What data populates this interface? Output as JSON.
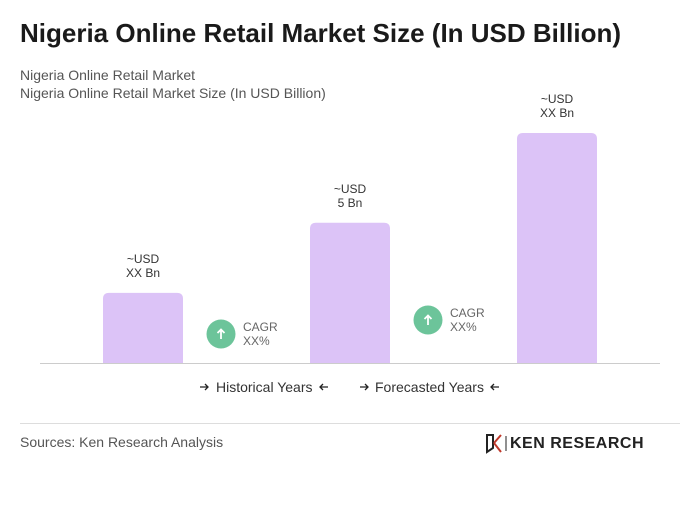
{
  "title": "Nigeria Online Retail Market Size (In USD Billion)",
  "subtitles": [
    "Nigeria Online Retail Market",
    "Nigeria Online Retail Market Size (In USD Billion)"
  ],
  "chart_data": {
    "type": "bar",
    "categories": [
      null,
      null,
      null
    ],
    "values": [
      2.5,
      5,
      8.2
    ],
    "value_labels": [
      "~USD\nXX Bn",
      "~USD\n5 Bn",
      "~USD\nXX Bn"
    ],
    "color": "#dcc3f7",
    "annotations": [
      "CAGR\nXX%",
      "CAGR\nXX%"
    ],
    "annotation_color": "#6cc49a",
    "periods": [
      "Historical Years",
      "Forecasted Years"
    ]
  },
  "source": "Sources: Ken Research Analysis",
  "brand": "KEN RESEARCH"
}
